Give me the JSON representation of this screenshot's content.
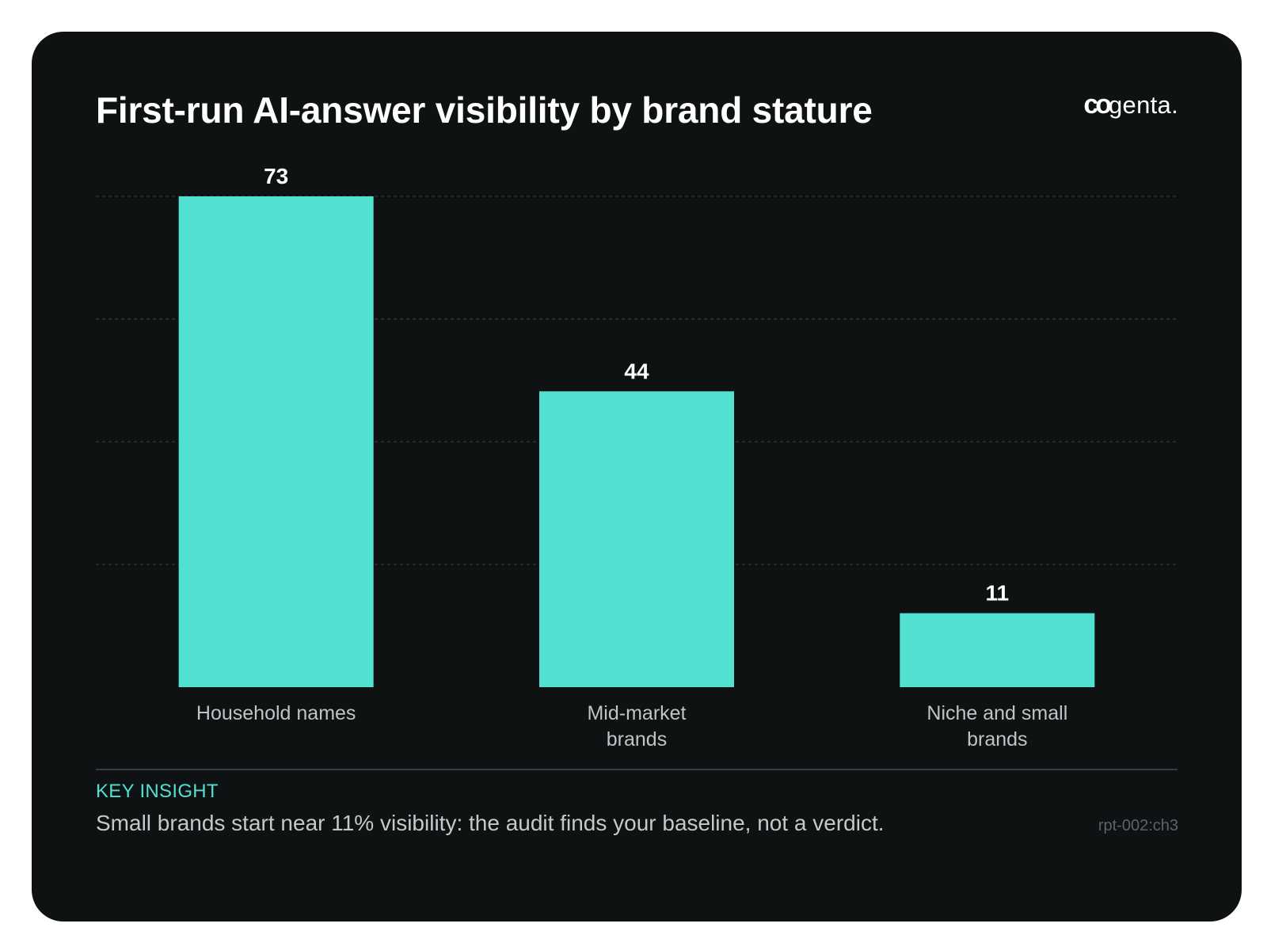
{
  "logo": {
    "mark": "co",
    "text": "genta."
  },
  "chart_data": {
    "type": "bar",
    "title": "First-run AI-answer visibility by brand stature",
    "categories": [
      [
        "Household names"
      ],
      [
        "Mid-market",
        "brands"
      ],
      [
        "Niche and small",
        "brands"
      ]
    ],
    "values": [
      73,
      44,
      11
    ],
    "ylim": [
      0,
      73
    ],
    "grid": true,
    "bar_color": "#52e0d1",
    "xlabel": "",
    "ylabel": ""
  },
  "insight": {
    "heading": "KEY INSIGHT",
    "text": "Small brands start near 11% visibility: the audit finds your baseline, not a verdict."
  },
  "reference": "rpt-002:ch3"
}
